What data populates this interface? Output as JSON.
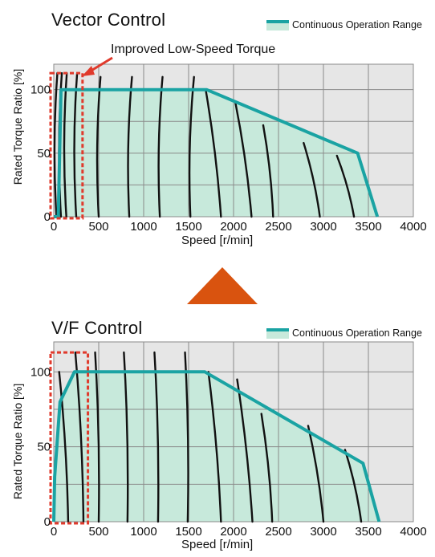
{
  "colors": {
    "fill": "#c7e9db",
    "line": "#1aa3a3",
    "grid": "#8a8a8a",
    "bg": "#e6e6e6",
    "curve": "#111111",
    "highlight": "#e03a2c",
    "arrow": "#d9530f"
  },
  "chart_data": [
    {
      "type": "area",
      "title": "Vector Control",
      "xlabel": "Speed [r/min]",
      "ylabel": "Rated Torque Ratio [%]",
      "xlim": [
        0,
        4000
      ],
      "ylim": [
        0,
        120
      ],
      "xticks": [
        "0",
        "500",
        "1000",
        "1500",
        "2000",
        "2500",
        "3000",
        "3500",
        "4000"
      ],
      "xtick_values": [
        0,
        500,
        1000,
        1500,
        2000,
        2500,
        3000,
        3500,
        4000
      ],
      "yticks": [
        "0",
        "50",
        "100"
      ],
      "ytick_values": [
        0,
        50,
        100
      ],
      "grid": true,
      "legend": "top-right",
      "series": [
        {
          "name": "Continuous Operation Range",
          "x": [
            0,
            50,
            80,
            1700,
            3380,
            3600
          ],
          "y": [
            0,
            0,
            100,
            100,
            50,
            0
          ]
        }
      ],
      "torque_curves": [
        [
          [
            30,
            0
          ],
          [
            40,
            113
          ]
        ],
        [
          [
            80,
            0
          ],
          [
            90,
            113
          ]
        ],
        [
          [
            140,
            0
          ],
          [
            145,
            113
          ]
        ],
        [
          [
            250,
            0
          ],
          [
            260,
            113
          ]
        ],
        [
          [
            500,
            0
          ],
          [
            520,
            110
          ]
        ],
        [
          [
            840,
            0
          ],
          [
            870,
            110
          ]
        ],
        [
          [
            1180,
            0
          ],
          [
            1210,
            110
          ]
        ],
        [
          [
            1520,
            0
          ],
          [
            1560,
            110
          ]
        ],
        [
          [
            1860,
            0
          ],
          [
            1690,
            100
          ]
        ],
        [
          [
            2200,
            0
          ],
          [
            2020,
            90
          ]
        ],
        [
          [
            2440,
            0
          ],
          [
            2330,
            72
          ]
        ],
        [
          [
            2960,
            0
          ],
          [
            2780,
            58
          ]
        ],
        [
          [
            3340,
            0
          ],
          [
            3150,
            48
          ]
        ]
      ],
      "highlight": {
        "x": [
          0,
          320
        ],
        "y": [
          0,
          113
        ]
      },
      "annotation": "Improved Low-Speed Torque"
    },
    {
      "type": "area",
      "title": "V/F Control",
      "xlabel": "Speed [r/min]",
      "ylabel": "Rated Torque Ratio [%]",
      "xlim": [
        0,
        4000
      ],
      "ylim": [
        0,
        120
      ],
      "xticks": [
        "0",
        "500",
        "1000",
        "1500",
        "2000",
        "2500",
        "3000",
        "3500",
        "4000"
      ],
      "xtick_values": [
        0,
        500,
        1000,
        1500,
        2000,
        2500,
        3000,
        3500,
        4000
      ],
      "yticks": [
        "0",
        "50",
        "100"
      ],
      "ytick_values": [
        0,
        50,
        100
      ],
      "grid": true,
      "legend": "top-right",
      "series": [
        {
          "name": "Continuous Operation Range",
          "x": [
            0,
            10,
            70,
            230,
            1680,
            3440,
            3620
          ],
          "y": [
            0,
            30,
            80,
            100,
            100,
            39,
            0
          ]
        }
      ],
      "torque_curves": [
        [
          [
            160,
            0
          ],
          [
            60,
            100
          ]
        ],
        [
          [
            330,
            0
          ],
          [
            240,
            113
          ]
        ],
        [
          [
            500,
            0
          ],
          [
            460,
            113
          ]
        ],
        [
          [
            820,
            0
          ],
          [
            780,
            113
          ]
        ],
        [
          [
            1160,
            0
          ],
          [
            1120,
            113
          ]
        ],
        [
          [
            1490,
            0
          ],
          [
            1460,
            113
          ]
        ],
        [
          [
            1860,
            0
          ],
          [
            1720,
            100
          ]
        ],
        [
          [
            2210,
            0
          ],
          [
            2040,
            95
          ]
        ],
        [
          [
            2430,
            0
          ],
          [
            2310,
            72
          ]
        ],
        [
          [
            3000,
            0
          ],
          [
            2830,
            64
          ]
        ],
        [
          [
            3420,
            0
          ],
          [
            3240,
            48
          ]
        ]
      ],
      "highlight": {
        "x": [
          0,
          380
        ],
        "y": [
          0,
          113
        ]
      }
    }
  ]
}
